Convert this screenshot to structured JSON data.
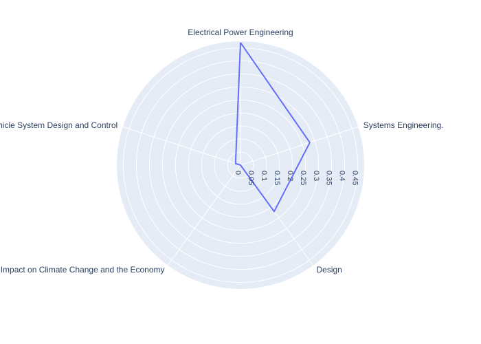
{
  "chart_data": {
    "type": "radar",
    "categories": [
      "Electrical Power Engineering",
      "Systems Engineering.",
      "Design",
      "Impact on Climate Change and the Economy",
      "Vehicle System Design and Control"
    ],
    "values": [
      0.47,
      0.28,
      0.22,
      0.0,
      0.02
    ],
    "radial_ticks": [
      "0",
      "0.05",
      "0.1",
      "0.15",
      "0.2",
      "0.25",
      "0.3",
      "0.35",
      "0.4",
      "0.45"
    ],
    "radial_tick_values": [
      0,
      0.05,
      0.1,
      0.15,
      0.2,
      0.25,
      0.3,
      0.35,
      0.4,
      0.45
    ],
    "rmax": 0.475,
    "grid": true,
    "colors": {
      "background": "#e5ecf6",
      "grid": "#ffffff",
      "line": "#636efa",
      "text": "#2a3f5f"
    }
  }
}
